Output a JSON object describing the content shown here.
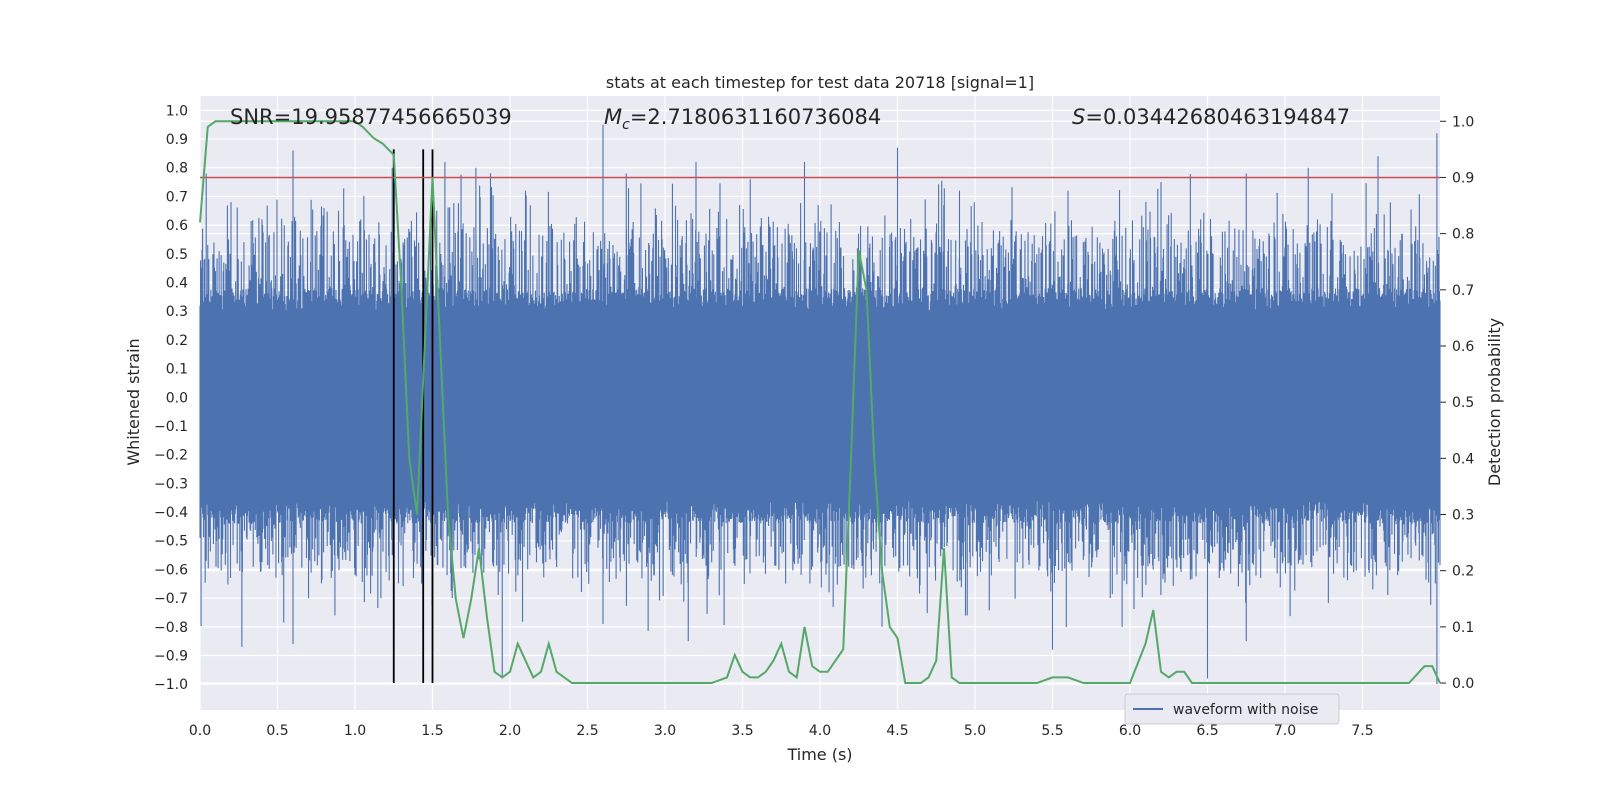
{
  "chart_data": {
    "type": "line",
    "title": "stats at each timestep for test data 20718 [signal=1]",
    "xlabel": "Time (s)",
    "ylabel": "Whitened strain",
    "y2label": "Detection probability",
    "xlim": [
      0.0,
      8.0
    ],
    "ylim": [
      -1.09,
      1.05
    ],
    "y2lim": [
      -0.048,
      1.045
    ],
    "grid": true,
    "legend_position": "lower-right",
    "x_ticks": [
      "0.0",
      "0.5",
      "1.0",
      "1.5",
      "2.0",
      "2.5",
      "3.0",
      "3.5",
      "4.0",
      "4.5",
      "5.0",
      "5.5",
      "6.0",
      "6.5",
      "7.0",
      "7.5"
    ],
    "y_ticks": [
      "1.0",
      "0.9",
      "0.8",
      "0.7",
      "0.6",
      "0.5",
      "0.4",
      "0.3",
      "0.2",
      "0.1",
      "0.0",
      "-0.1",
      "-0.2",
      "-0.3",
      "-0.4",
      "-0.5",
      "-0.6",
      "-0.7",
      "-0.8",
      "-0.9",
      "-1.0"
    ],
    "y2_ticks": [
      "1.0",
      "0.9",
      "0.8",
      "0.7",
      "0.6",
      "0.5",
      "0.4",
      "0.3",
      "0.2",
      "0.1",
      "0.0"
    ],
    "annotations": {
      "snr": "SNR=19.95877456665039",
      "mc_symbol": "M",
      "mc_sub": "c",
      "mc_value": "=2.7180631160736084",
      "s_symbol": "S",
      "s_value": "=0.03442680463194847"
    },
    "threshold_line": {
      "value": 0.9,
      "axis": "right",
      "color": "#c44e52"
    },
    "vertical_lines": [
      1.25,
      1.44,
      1.5
    ],
    "series": [
      {
        "name": "waveform with noise",
        "axis": "left",
        "color": "#4c72b0",
        "description_of_envelope": "dense noise; core band approx -0.4 to 0.35, spikes up to ~0.95 and down to ~-0.98",
        "spike_highs": [
          {
            "x": 0.04,
            "y": 0.78
          },
          {
            "x": 0.2,
            "y": 0.68
          },
          {
            "x": 0.4,
            "y": 0.62
          },
          {
            "x": 0.6,
            "y": 0.86
          },
          {
            "x": 0.8,
            "y": 0.66
          },
          {
            "x": 1.24,
            "y": 0.8
          },
          {
            "x": 1.58,
            "y": 0.82
          },
          {
            "x": 1.78,
            "y": 0.8
          },
          {
            "x": 2.1,
            "y": 0.72
          },
          {
            "x": 2.6,
            "y": 0.95
          },
          {
            "x": 2.75,
            "y": 0.78
          },
          {
            "x": 3.2,
            "y": 0.82
          },
          {
            "x": 3.55,
            "y": 0.76
          },
          {
            "x": 3.9,
            "y": 0.82
          },
          {
            "x": 4.5,
            "y": 0.87
          },
          {
            "x": 4.9,
            "y": 0.72
          },
          {
            "x": 5.6,
            "y": 0.72
          },
          {
            "x": 6.2,
            "y": 0.75
          },
          {
            "x": 6.75,
            "y": 0.78
          },
          {
            "x": 7.15,
            "y": 0.8
          },
          {
            "x": 7.6,
            "y": 0.84
          },
          {
            "x": 7.98,
            "y": 0.92
          }
        ],
        "spike_lows": [
          {
            "x": 0.04,
            "y": -0.57
          },
          {
            "x": 0.27,
            "y": -0.87
          },
          {
            "x": 0.6,
            "y": -0.86
          },
          {
            "x": 1.43,
            "y": -0.65
          },
          {
            "x": 1.95,
            "y": -0.98
          },
          {
            "x": 2.6,
            "y": -0.79
          },
          {
            "x": 3.15,
            "y": -0.85
          },
          {
            "x": 3.35,
            "y": -0.69
          },
          {
            "x": 4.4,
            "y": -0.8
          },
          {
            "x": 4.95,
            "y": -0.76
          },
          {
            "x": 5.5,
            "y": -0.88
          },
          {
            "x": 6.5,
            "y": -0.98
          },
          {
            "x": 6.75,
            "y": -0.85
          },
          {
            "x": 7.98,
            "y": -1.0
          }
        ]
      },
      {
        "name": "detection probability",
        "axis": "right",
        "color": "#55a868",
        "x": [
          0.0,
          0.05,
          0.1,
          0.2,
          0.3,
          0.4,
          0.5,
          0.6,
          0.7,
          0.8,
          0.9,
          1.0,
          1.05,
          1.12,
          1.18,
          1.25,
          1.3,
          1.35,
          1.4,
          1.45,
          1.5,
          1.55,
          1.6,
          1.65,
          1.7,
          1.75,
          1.8,
          1.85,
          1.9,
          1.95,
          2.0,
          2.05,
          2.1,
          2.15,
          2.2,
          2.25,
          2.3,
          2.35,
          2.4,
          2.45,
          2.5,
          2.6,
          2.7,
          2.8,
          2.9,
          3.0,
          3.1,
          3.2,
          3.3,
          3.4,
          3.45,
          3.5,
          3.55,
          3.6,
          3.65,
          3.7,
          3.75,
          3.8,
          3.85,
          3.9,
          3.95,
          4.0,
          4.05,
          4.1,
          4.15,
          4.2,
          4.25,
          4.3,
          4.35,
          4.4,
          4.45,
          4.5,
          4.55,
          4.6,
          4.65,
          4.7,
          4.75,
          4.8,
          4.85,
          4.9,
          4.95,
          5.0,
          5.05,
          5.1,
          5.2,
          5.3,
          5.4,
          5.5,
          5.6,
          5.7,
          5.8,
          5.9,
          6.0,
          6.1,
          6.15,
          6.2,
          6.25,
          6.3,
          6.35,
          6.4,
          6.45,
          6.5,
          6.6,
          6.7,
          6.8,
          6.9,
          7.0,
          7.1,
          7.2,
          7.3,
          7.4,
          7.5,
          7.6,
          7.7,
          7.8,
          7.9,
          7.95,
          8.0
        ],
        "y": [
          0.82,
          0.99,
          1.0,
          1.0,
          1.0,
          1.0,
          1.0,
          1.0,
          1.0,
          1.0,
          1.0,
          1.0,
          0.99,
          0.97,
          0.96,
          0.94,
          0.7,
          0.4,
          0.3,
          0.6,
          0.9,
          0.6,
          0.3,
          0.15,
          0.08,
          0.15,
          0.24,
          0.12,
          0.02,
          0.01,
          0.02,
          0.07,
          0.04,
          0.01,
          0.02,
          0.07,
          0.02,
          0.01,
          0.0,
          0.0,
          0.0,
          0.0,
          0.0,
          0.0,
          0.0,
          0.0,
          0.0,
          0.0,
          0.0,
          0.01,
          0.05,
          0.02,
          0.01,
          0.01,
          0.02,
          0.04,
          0.07,
          0.02,
          0.01,
          0.1,
          0.03,
          0.02,
          0.02,
          0.04,
          0.06,
          0.4,
          0.77,
          0.7,
          0.4,
          0.2,
          0.1,
          0.08,
          0.0,
          0.0,
          0.0,
          0.01,
          0.04,
          0.24,
          0.01,
          0.0,
          0.0,
          0.0,
          0.0,
          0.0,
          0.0,
          0.0,
          0.0,
          0.01,
          0.01,
          0.0,
          0.0,
          0.0,
          0.0,
          0.07,
          0.13,
          0.02,
          0.01,
          0.02,
          0.02,
          0.0,
          0.0,
          0.0,
          0.0,
          0.0,
          0.0,
          0.0,
          0.0,
          0.0,
          0.0,
          0.0,
          0.0,
          0.0,
          0.0,
          0.0,
          0.0,
          0.03,
          0.03,
          0.0
        ]
      }
    ],
    "legend": [
      "waveform with noise"
    ]
  }
}
